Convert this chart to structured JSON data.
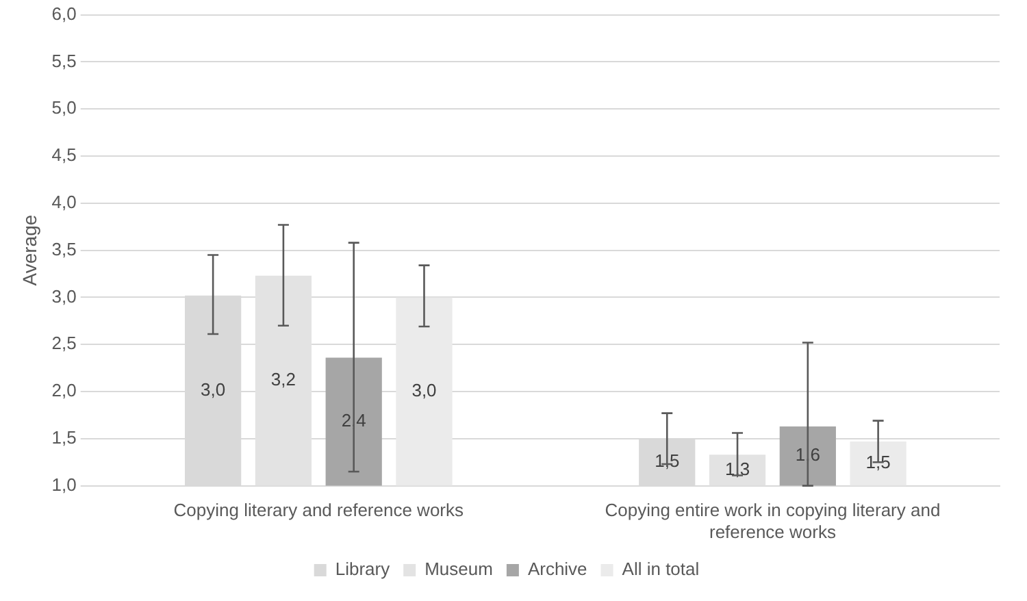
{
  "chart_data": {
    "type": "bar",
    "ylabel": "Average",
    "categories": [
      "Copying literary and reference works",
      "Copying entire work in copying literary and reference works"
    ],
    "series": [
      {
        "name": "Library",
        "color": "#d9d9d9",
        "values": [
          3.02,
          1.5
        ],
        "errors": [
          [
            2.61,
            3.45
          ],
          [
            1.23,
            1.77
          ]
        ],
        "value_labels": [
          "3,0",
          "1,5"
        ]
      },
      {
        "name": "Museum",
        "color": "#e3e3e3",
        "values": [
          3.23,
          1.33
        ],
        "errors": [
          [
            2.7,
            3.77
          ],
          [
            1.11,
            1.56
          ]
        ],
        "value_labels": [
          "3,2",
          "1,3"
        ]
      },
      {
        "name": "Archive",
        "color": "#a6a6a6",
        "values": [
          2.36,
          1.63
        ],
        "errors": [
          [
            1.15,
            3.58
          ],
          [
            1.0,
            2.52
          ]
        ],
        "value_labels": [
          "2,4",
          "1,6"
        ]
      },
      {
        "name": "All in total",
        "color": "#ebebeb",
        "values": [
          3.0,
          1.47
        ],
        "errors": [
          [
            2.69,
            3.34
          ],
          [
            1.25,
            1.69
          ]
        ],
        "value_labels": [
          "3,0",
          "1,5"
        ]
      }
    ],
    "ylim": [
      1,
      6
    ],
    "yticks": [
      {
        "value": 1,
        "label": "1,0"
      },
      {
        "value": 1.5,
        "label": "1,5"
      },
      {
        "value": 2,
        "label": "2,0"
      },
      {
        "value": 2.5,
        "label": "2,5"
      },
      {
        "value": 3,
        "label": "3,0"
      },
      {
        "value": 3.5,
        "label": "3,5"
      },
      {
        "value": 4,
        "label": "4,0"
      },
      {
        "value": 4.5,
        "label": "4,5"
      },
      {
        "value": 5,
        "label": "5,0"
      },
      {
        "value": 5.5,
        "label": "5,5"
      },
      {
        "value": 6,
        "label": "6,0"
      }
    ],
    "grid": "y",
    "legend": "bottom"
  }
}
